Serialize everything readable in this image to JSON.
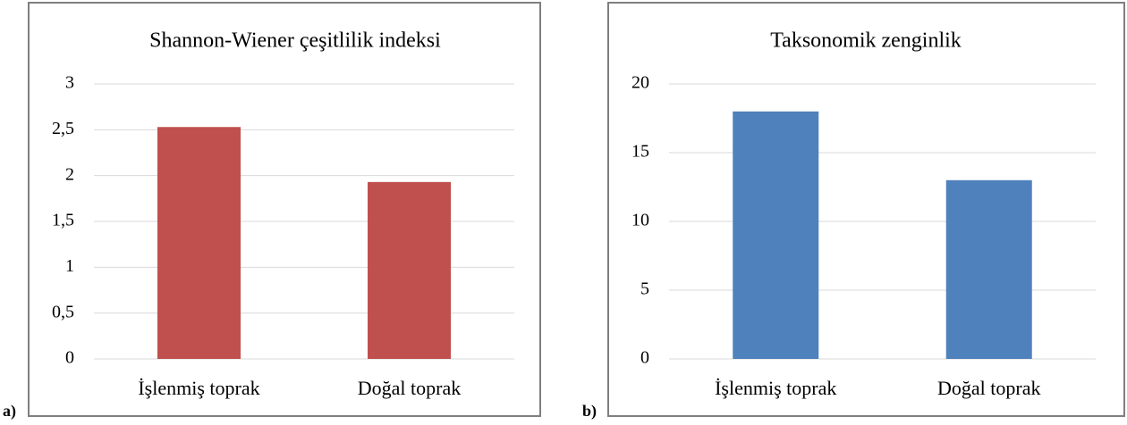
{
  "chart_data": [
    {
      "type": "bar",
      "label": "a)",
      "title": "Shannon-Wiener çeşitlilik indeksi",
      "categories": [
        "İşlenmiş toprak",
        "Doğal toprak"
      ],
      "values": [
        2.53,
        1.93
      ],
      "color": "#c0504d",
      "ylim": [
        0,
        3
      ],
      "yticks": [
        0,
        {
          "value": 0.5,
          "label": "0,5"
        },
        1,
        {
          "value": 1.5,
          "label": "1,5"
        },
        2,
        {
          "value": 2.5,
          "label": "2,5"
        },
        3
      ],
      "grid": true
    },
    {
      "type": "bar",
      "label": "b)",
      "title": "Taksonomik zenginlik",
      "categories": [
        "İşlenmiş toprak",
        "Doğal toprak"
      ],
      "values": [
        18,
        13
      ],
      "color": "#4f81bd",
      "ylim": [
        0,
        20
      ],
      "yticks": [
        0,
        5,
        10,
        15,
        20
      ],
      "grid": true
    }
  ]
}
